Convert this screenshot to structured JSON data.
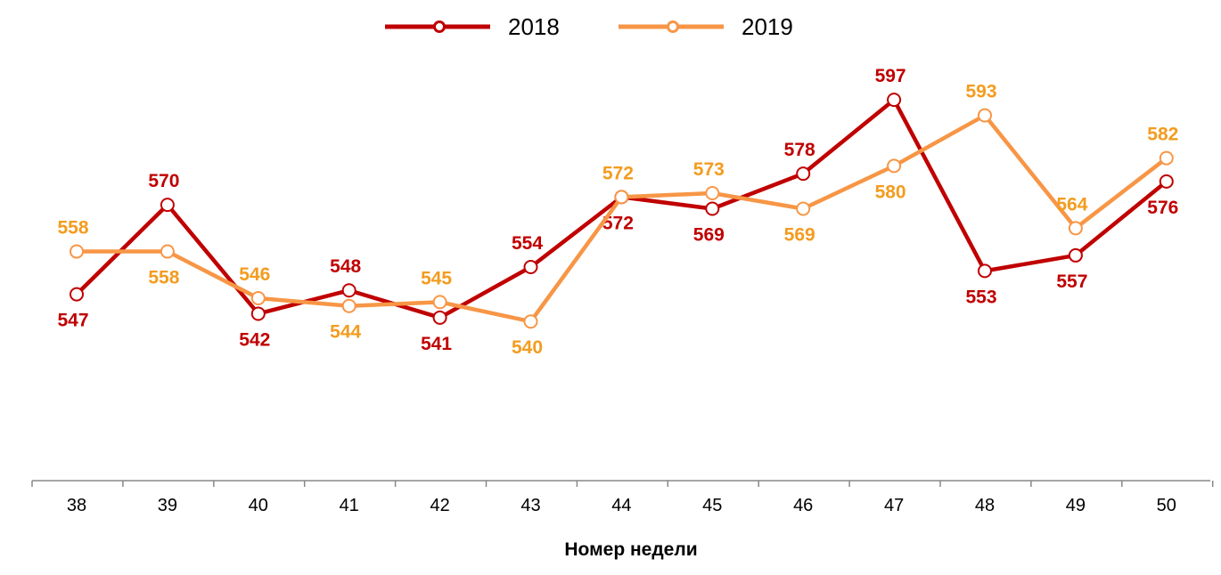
{
  "chart_data": {
    "type": "line",
    "title": "",
    "xlabel": "Номер недели",
    "ylabel": "",
    "categories": [
      "38",
      "39",
      "40",
      "41",
      "42",
      "43",
      "44",
      "45",
      "46",
      "47",
      "48",
      "49",
      "50"
    ],
    "ylim": [
      500,
      600
    ],
    "grid": false,
    "legend_placement": "top-center",
    "series": [
      {
        "name": "2018",
        "color": "#C00000",
        "label_color": "#C00000",
        "values": [
          547,
          570,
          542,
          548,
          541,
          554,
          572,
          569,
          578,
          597,
          553,
          557,
          576
        ]
      },
      {
        "name": "2019",
        "color": "#F79646",
        "label_color": "#F39C1F",
        "values": [
          558,
          558,
          546,
          544,
          545,
          540,
          572,
          573,
          569,
          580,
          593,
          564,
          582
        ]
      }
    ]
  }
}
